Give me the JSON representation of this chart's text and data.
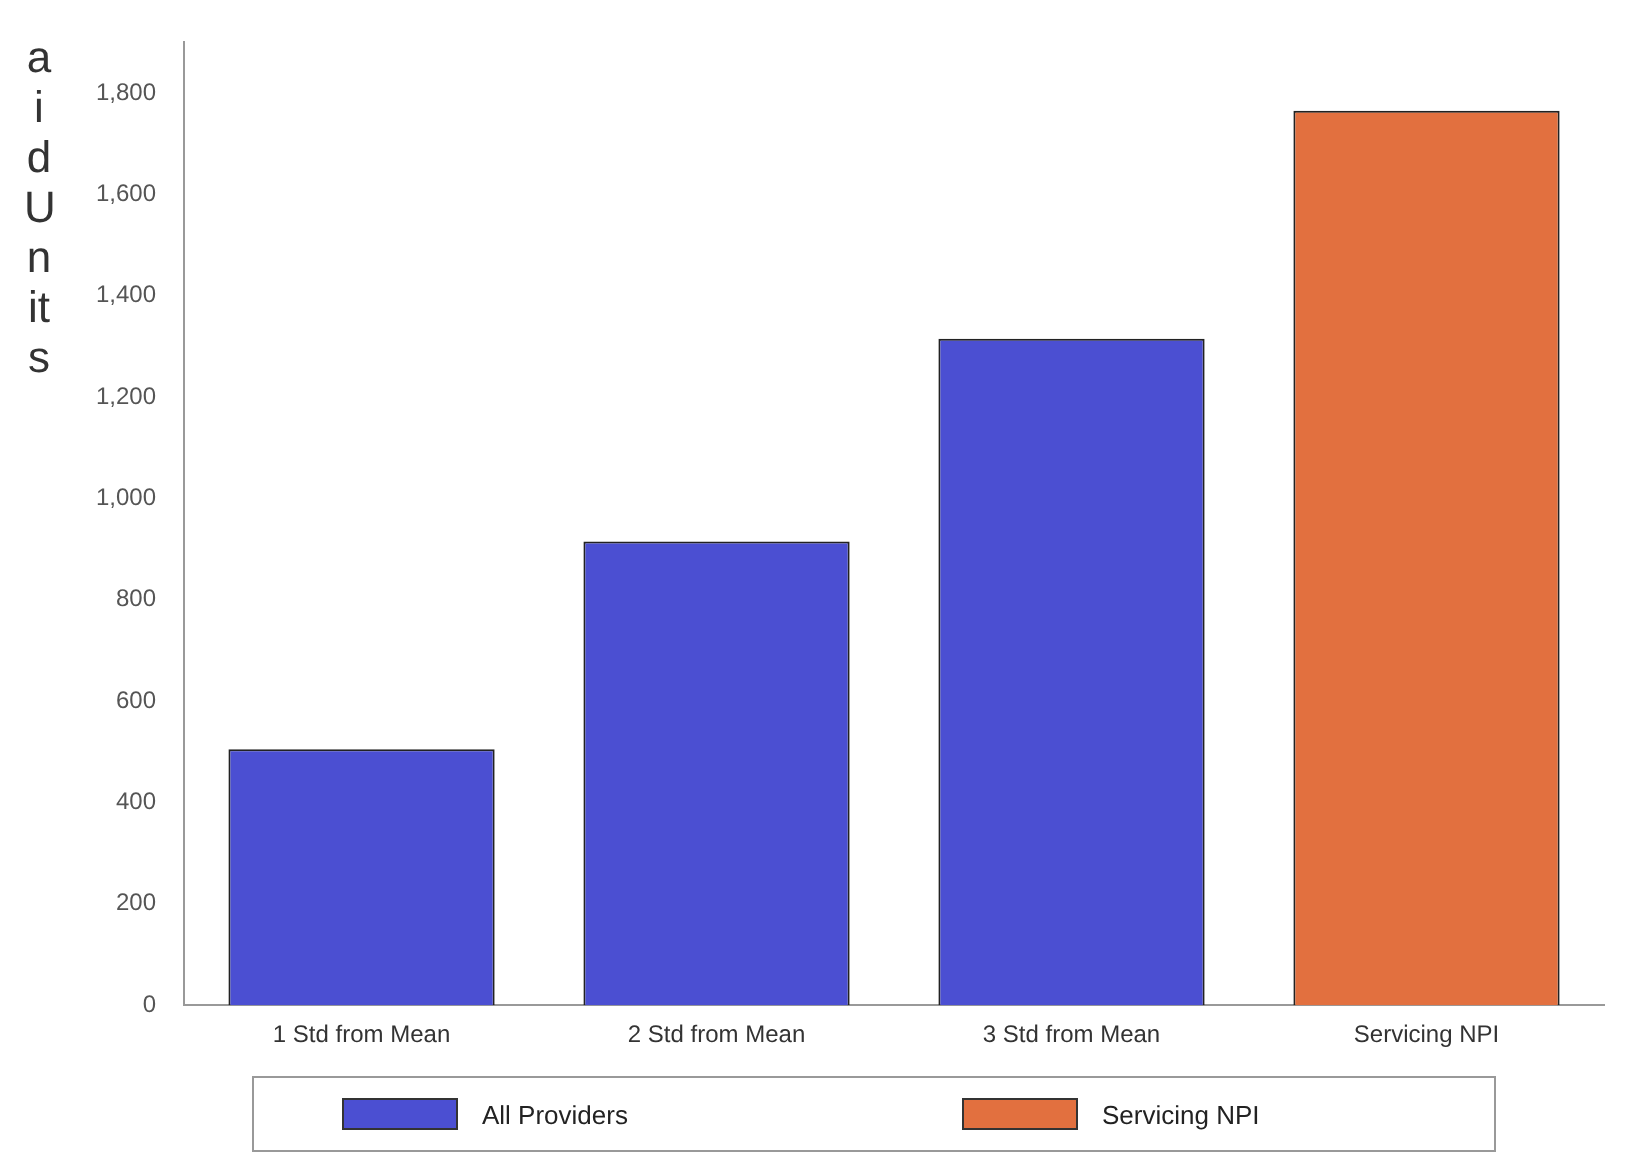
{
  "chart_data": {
    "type": "bar",
    "ylabel": "aid Units",
    "categories": [
      "1 Std from Mean",
      "2 Std from Mean",
      "3 Std from Mean",
      "Servicing NPI"
    ],
    "series": [
      {
        "name": "All Providers",
        "color": "#4b4fd2",
        "values": [
          505,
          915,
          1315,
          null
        ]
      },
      {
        "name": "Servicing NPI",
        "color": "#e2703f",
        "values": [
          null,
          null,
          null,
          1765
        ]
      }
    ],
    "stacked": true,
    "ylim": [
      0,
      1900
    ],
    "yticks": [
      0,
      200,
      400,
      600,
      800,
      {
        "value": 1000,
        "label": "1,000"
      },
      {
        "value": 1200,
        "label": "1,200"
      },
      {
        "value": 1400,
        "label": "1,400"
      },
      {
        "value": 1600,
        "label": "1,600"
      },
      {
        "value": 1800,
        "label": "1,800"
      }
    ],
    "grid": false,
    "legend": "bottom"
  }
}
